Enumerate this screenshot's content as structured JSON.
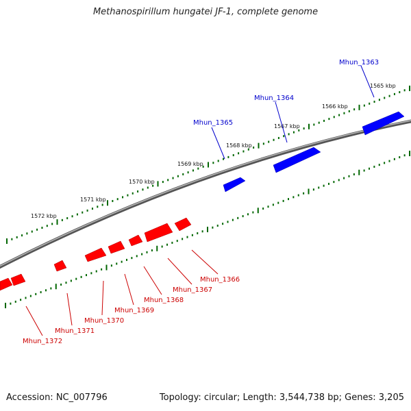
{
  "title": "Methanospirillum hungatei JF-1, complete genome",
  "footer": {
    "accession": "Accession: NC_007796",
    "topology": "Topology: circular; Length: 3,544,738 bp; Genes: 3,205"
  },
  "colors": {
    "backbone": "#888888",
    "forward_gene": "#0000ff",
    "reverse_gene": "#ff0000",
    "tick": "#006600"
  },
  "kbp_labels": [
    "1565 kbp",
    "1566 kbp",
    "1567 kbp",
    "1568 kbp",
    "1569 kbp",
    "1570 kbp",
    "1571 kbp",
    "1572 kbp"
  ],
  "forward_genes": [
    "Mhun_1363",
    "Mhun_1364",
    "Mhun_1365"
  ],
  "reverse_genes": [
    "Mhun_1366",
    "Mhun_1367",
    "Mhun_1368",
    "Mhun_1369",
    "Mhun_1370",
    "Mhun_1371",
    "Mhun_1372"
  ]
}
